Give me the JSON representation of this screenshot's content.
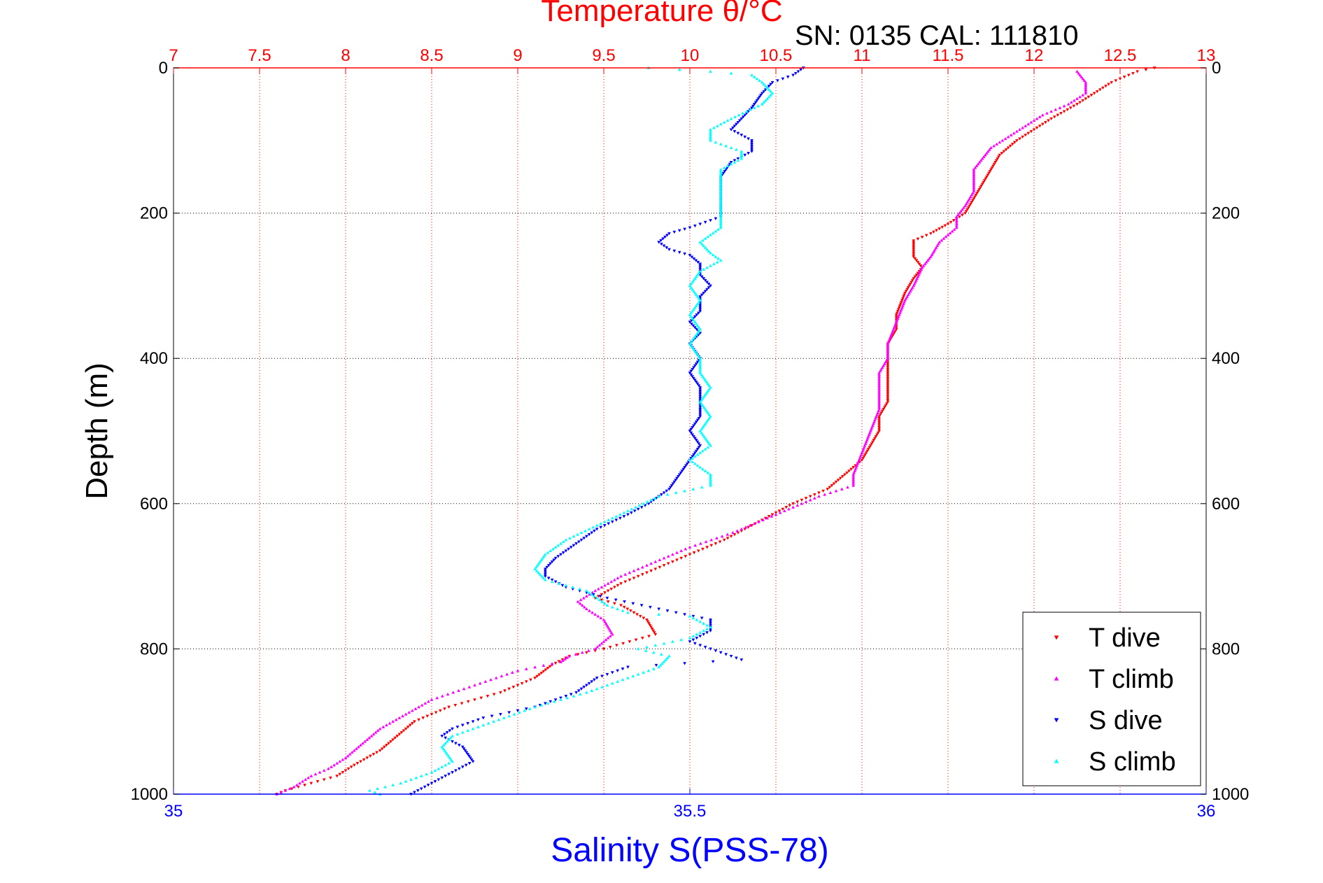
{
  "chart_data": {
    "type": "scatter",
    "title_top": "Temperature θ/°C",
    "annotation": "SN: 0135  CAL: 111810",
    "xlabel": "Salinity S(PSS-78)",
    "ylabel": "Depth (m)",
    "top_axis": {
      "range": [
        7,
        13
      ],
      "ticks": [
        7,
        7.5,
        8,
        8.5,
        9,
        9.5,
        10,
        10.5,
        11,
        11.5,
        12,
        12.5,
        13
      ],
      "tick_labels": [
        "7",
        "7.5",
        "8",
        "8.5",
        "9",
        "9.5",
        "10",
        "10.5",
        "11",
        "11.5",
        "12",
        "12.5",
        "13"
      ],
      "color": "#ff0000"
    },
    "bottom_axis": {
      "range": [
        35,
        36
      ],
      "ticks": [
        35,
        35.5,
        36
      ],
      "tick_labels": [
        "35",
        "35.5",
        "36"
      ],
      "color": "#0000ff"
    },
    "y_axis": {
      "range": [
        0,
        1000
      ],
      "reversed": true,
      "ticks": [
        0,
        200,
        400,
        600,
        800,
        1000
      ],
      "tick_labels": [
        "0",
        "200",
        "400",
        "600",
        "800",
        "1000"
      ]
    },
    "grid": true,
    "legend_position": "bottom-right",
    "series": [
      {
        "name": "T dive",
        "axis": "temperature",
        "color": "#ff0000",
        "marker": "triangle-down",
        "points": [
          [
            12.7,
            0
          ],
          [
            12.6,
            5
          ],
          [
            12.45,
            20
          ],
          [
            12.35,
            35
          ],
          [
            12.25,
            50
          ],
          [
            12.1,
            70
          ],
          [
            12.0,
            85
          ],
          [
            11.9,
            100
          ],
          [
            11.8,
            120
          ],
          [
            11.75,
            140
          ],
          [
            11.7,
            160
          ],
          [
            11.65,
            180
          ],
          [
            11.6,
            200
          ],
          [
            11.5,
            215
          ],
          [
            11.4,
            228
          ],
          [
            11.3,
            238
          ],
          [
            11.3,
            250
          ],
          [
            11.3,
            260
          ],
          [
            11.35,
            275
          ],
          [
            11.3,
            290
          ],
          [
            11.25,
            310
          ],
          [
            11.2,
            340
          ],
          [
            11.2,
            360
          ],
          [
            11.15,
            380
          ],
          [
            11.15,
            400
          ],
          [
            11.15,
            420
          ],
          [
            11.15,
            440
          ],
          [
            11.15,
            460
          ],
          [
            11.1,
            480
          ],
          [
            11.1,
            500
          ],
          [
            11.05,
            520
          ],
          [
            11.0,
            540
          ],
          [
            10.9,
            560
          ],
          [
            10.8,
            580
          ],
          [
            10.6,
            600
          ],
          [
            10.4,
            625
          ],
          [
            10.2,
            650
          ],
          [
            10.0,
            670
          ],
          [
            9.8,
            690
          ],
          [
            9.6,
            710
          ],
          [
            9.45,
            730
          ],
          [
            9.6,
            740
          ],
          [
            9.75,
            760
          ],
          [
            9.8,
            780
          ],
          [
            9.5,
            800
          ],
          [
            9.3,
            810
          ],
          [
            9.2,
            822
          ],
          [
            9.1,
            840
          ],
          [
            8.9,
            860
          ],
          [
            8.6,
            880
          ],
          [
            8.4,
            900
          ],
          [
            8.3,
            920
          ],
          [
            8.2,
            940
          ],
          [
            8.05,
            960
          ],
          [
            7.95,
            975
          ],
          [
            7.8,
            985
          ],
          [
            7.65,
            995
          ],
          [
            7.6,
            1000
          ]
        ]
      },
      {
        "name": "T climb",
        "axis": "temperature",
        "color": "#ff00ff",
        "marker": "triangle-up",
        "points": [
          [
            12.25,
            5
          ],
          [
            12.3,
            20
          ],
          [
            12.3,
            35
          ],
          [
            12.2,
            50
          ],
          [
            12.05,
            65
          ],
          [
            11.95,
            80
          ],
          [
            11.85,
            95
          ],
          [
            11.75,
            110
          ],
          [
            11.65,
            140
          ],
          [
            11.65,
            170
          ],
          [
            11.6,
            190
          ],
          [
            11.55,
            205
          ],
          [
            11.55,
            220
          ],
          [
            11.45,
            240
          ],
          [
            11.4,
            260
          ],
          [
            11.35,
            275
          ],
          [
            11.3,
            300
          ],
          [
            11.25,
            320
          ],
          [
            11.2,
            350
          ],
          [
            11.15,
            380
          ],
          [
            11.15,
            400
          ],
          [
            11.1,
            420
          ],
          [
            11.1,
            440
          ],
          [
            11.1,
            470
          ],
          [
            11.05,
            500
          ],
          [
            11.0,
            530
          ],
          [
            10.95,
            560
          ],
          [
            10.95,
            575
          ],
          [
            10.75,
            590
          ],
          [
            10.5,
            615
          ],
          [
            10.25,
            640
          ],
          [
            10.0,
            660
          ],
          [
            9.8,
            680
          ],
          [
            9.6,
            700
          ],
          [
            9.45,
            720
          ],
          [
            9.35,
            735
          ],
          [
            9.4,
            745
          ],
          [
            9.5,
            760
          ],
          [
            9.55,
            780
          ],
          [
            9.45,
            800
          ],
          [
            9.3,
            810
          ],
          [
            9.25,
            818
          ],
          [
            9.0,
            830
          ],
          [
            8.75,
            850
          ],
          [
            8.5,
            870
          ],
          [
            8.35,
            890
          ],
          [
            8.2,
            910
          ],
          [
            8.1,
            930
          ],
          [
            8.0,
            950
          ],
          [
            7.9,
            965
          ],
          [
            7.8,
            975
          ],
          [
            7.7,
            990
          ],
          [
            7.6,
            1000
          ]
        ]
      },
      {
        "name": "S dive",
        "axis": "salinity",
        "color": "#0000ff",
        "marker": "triangle-down",
        "points": [
          [
            35.61,
            0
          ],
          [
            35.6,
            10
          ],
          [
            35.58,
            20
          ],
          [
            35.57,
            35
          ],
          [
            35.56,
            55
          ],
          [
            35.55,
            70
          ],
          [
            35.54,
            85
          ],
          [
            35.56,
            100
          ],
          [
            35.56,
            115
          ],
          [
            35.54,
            130
          ],
          [
            35.53,
            150
          ],
          [
            35.53,
            170
          ],
          [
            35.53,
            190
          ],
          [
            35.53,
            205
          ],
          [
            35.5,
            220
          ],
          [
            35.48,
            228
          ],
          [
            35.47,
            240
          ],
          [
            35.48,
            250
          ],
          [
            35.5,
            258
          ],
          [
            35.51,
            270
          ],
          [
            35.51,
            285
          ],
          [
            35.52,
            300
          ],
          [
            35.51,
            315
          ],
          [
            35.51,
            335
          ],
          [
            35.5,
            350
          ],
          [
            35.51,
            365
          ],
          [
            35.5,
            380
          ],
          [
            35.51,
            400
          ],
          [
            35.5,
            420
          ],
          [
            35.51,
            440
          ],
          [
            35.51,
            460
          ],
          [
            35.51,
            480
          ],
          [
            35.5,
            500
          ],
          [
            35.51,
            520
          ],
          [
            35.5,
            540
          ],
          [
            35.49,
            560
          ],
          [
            35.48,
            580
          ],
          [
            35.46,
            600
          ],
          [
            35.44,
            615
          ],
          [
            35.41,
            635
          ],
          [
            35.39,
            655
          ],
          [
            35.37,
            675
          ],
          [
            35.36,
            690
          ],
          [
            35.36,
            700
          ],
          [
            35.38,
            715
          ],
          [
            35.42,
            730
          ],
          [
            35.47,
            745
          ],
          [
            35.52,
            760
          ],
          [
            35.52,
            775
          ],
          [
            35.5,
            790
          ],
          [
            35.55,
            815
          ],
          [
            35.44,
            825
          ],
          [
            35.41,
            840
          ],
          [
            35.39,
            860
          ],
          [
            35.35,
            880
          ],
          [
            35.3,
            895
          ],
          [
            35.27,
            910
          ],
          [
            35.26,
            920
          ],
          [
            35.28,
            935
          ],
          [
            35.29,
            955
          ],
          [
            35.27,
            970
          ],
          [
            35.25,
            985
          ],
          [
            35.23,
            1000
          ]
        ]
      },
      {
        "name": "S climb",
        "axis": "salinity",
        "color": "#00ffff",
        "marker": "triangle-up",
        "points": [
          [
            35.46,
            0
          ],
          [
            35.52,
            5
          ],
          [
            35.56,
            10
          ],
          [
            35.57,
            20
          ],
          [
            35.58,
            35
          ],
          [
            35.57,
            50
          ],
          [
            35.54,
            70
          ],
          [
            35.52,
            85
          ],
          [
            35.52,
            100
          ],
          [
            35.55,
            115
          ],
          [
            35.55,
            125
          ],
          [
            35.53,
            140
          ],
          [
            35.53,
            160
          ],
          [
            35.53,
            180
          ],
          [
            35.53,
            200
          ],
          [
            35.53,
            220
          ],
          [
            35.51,
            240
          ],
          [
            35.52,
            255
          ],
          [
            35.53,
            265
          ],
          [
            35.51,
            280
          ],
          [
            35.5,
            300
          ],
          [
            35.51,
            320
          ],
          [
            35.5,
            340
          ],
          [
            35.51,
            360
          ],
          [
            35.5,
            380
          ],
          [
            35.51,
            400
          ],
          [
            35.51,
            420
          ],
          [
            35.52,
            440
          ],
          [
            35.51,
            460
          ],
          [
            35.52,
            480
          ],
          [
            35.51,
            500
          ],
          [
            35.52,
            520
          ],
          [
            35.5,
            540
          ],
          [
            35.52,
            560
          ],
          [
            35.52,
            575
          ],
          [
            35.47,
            590
          ],
          [
            35.44,
            610
          ],
          [
            35.41,
            630
          ],
          [
            35.38,
            650
          ],
          [
            35.36,
            670
          ],
          [
            35.35,
            690
          ],
          [
            35.36,
            705
          ],
          [
            35.4,
            720
          ],
          [
            35.42,
            740
          ],
          [
            35.44,
            750
          ],
          [
            35.5,
            755
          ],
          [
            35.52,
            770
          ],
          [
            35.5,
            785
          ],
          [
            35.45,
            800
          ],
          [
            35.48,
            810
          ],
          [
            35.47,
            825
          ],
          [
            35.44,
            840
          ],
          [
            35.4,
            860
          ],
          [
            35.35,
            880
          ],
          [
            35.31,
            900
          ],
          [
            35.27,
            920
          ],
          [
            35.26,
            935
          ],
          [
            35.27,
            955
          ],
          [
            35.25,
            970
          ],
          [
            35.22,
            985
          ],
          [
            35.19,
            995
          ],
          [
            35.2,
            1000
          ]
        ]
      }
    ]
  }
}
